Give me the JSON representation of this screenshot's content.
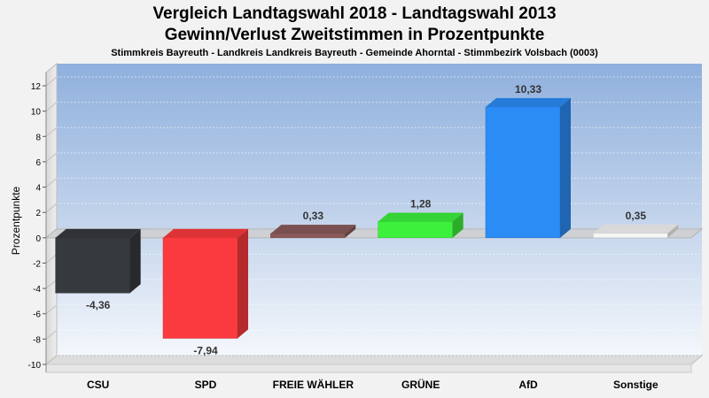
{
  "header": {
    "title_line1": "Vergleich Landtagswahl 2018 - Landtagswahl 2013",
    "title_line2": "Gewinn/Verlust Zweitstimmen in Prozentpunkte",
    "subtitle": "Stimmkreis Bayreuth - Landkreis Landkreis Bayreuth - Gemeinde Ahorntal - Stimmbezirk Volsbach (0003)"
  },
  "chart_data": {
    "type": "bar",
    "title": "Vergleich Landtagswahl 2018 - Landtagswahl 2013 / Gewinn/Verlust Zweitstimmen in Prozentpunkte",
    "ylabel": "Prozentpunkte",
    "xlabel": "",
    "ylim": [
      -10,
      12
    ],
    "yticks": [
      12,
      10,
      8,
      6,
      4,
      2,
      0,
      -2,
      -4,
      -6,
      -8,
      -10
    ],
    "categories": [
      "CSU",
      "SPD",
      "FREIE WÄHLER",
      "GRÜNE",
      "AfD",
      "Sonstige"
    ],
    "values": [
      -4.36,
      -7.94,
      0.33,
      1.28,
      10.33,
      0.35
    ],
    "value_labels": [
      "-4,36",
      "-7,94",
      "0,33",
      "1,28",
      "10,33",
      "0,35"
    ],
    "colors": [
      "#36393d",
      "#fb3a3f",
      "#8a5a5a",
      "#3cf03c",
      "#2b8cf6",
      "#f7f7f7"
    ],
    "grid": true,
    "legend": "none"
  }
}
